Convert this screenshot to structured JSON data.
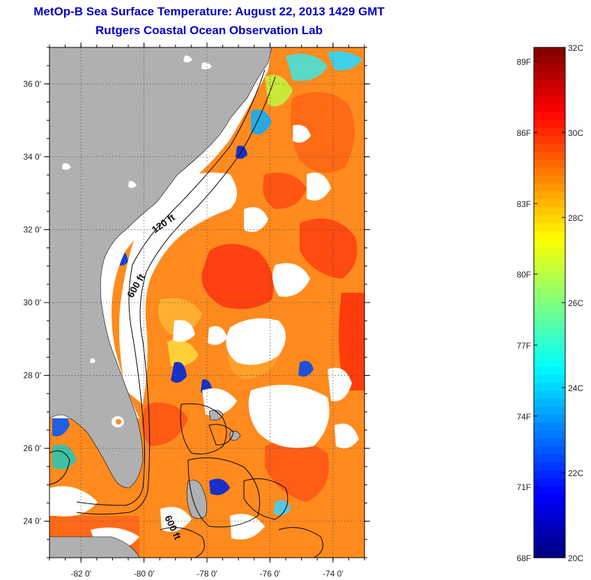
{
  "title": {
    "line1": "MetOp-B Sea Surface Temperature:  August 22, 2013 1429 GMT",
    "line2": "Rutgers Coastal Ocean Observation Lab"
  },
  "map": {
    "lon_range": [
      -83,
      -73
    ],
    "lat_range": [
      23,
      37
    ],
    "x_ticks": [
      {
        "value": -82,
        "label": "-82 0'"
      },
      {
        "value": -80,
        "label": "-80 0'"
      },
      {
        "value": -78,
        "label": "-78 0'"
      },
      {
        "value": -76,
        "label": "-76 0'"
      },
      {
        "value": -74,
        "label": "-74 0'"
      }
    ],
    "y_ticks": [
      {
        "value": 24,
        "label": "24 0'"
      },
      {
        "value": 26,
        "label": "26 0'"
      },
      {
        "value": 28,
        "label": "28 0'"
      },
      {
        "value": 30,
        "label": "30 0'"
      },
      {
        "value": 32,
        "label": "32 0'"
      },
      {
        "value": 34,
        "label": "34 0'"
      },
      {
        "value": 36,
        "label": "36 0'"
      }
    ],
    "isobath_labels": [
      "120 ft",
      "600 ft",
      "600 ft"
    ],
    "colors": {
      "land": "#b0b0b0",
      "cloud": "#ffffff",
      "contour": "#000000"
    }
  },
  "colorbar": {
    "min_c": 20,
    "max_c": 32,
    "fahrenheit_labels": [
      {
        "value_c": 31.67,
        "label": "89F"
      },
      {
        "value_c": 30.0,
        "label": "86F"
      },
      {
        "value_c": 28.33,
        "label": "83F"
      },
      {
        "value_c": 26.67,
        "label": "80F"
      },
      {
        "value_c": 25.0,
        "label": "77F"
      },
      {
        "value_c": 23.33,
        "label": "74F"
      },
      {
        "value_c": 21.67,
        "label": "71F"
      },
      {
        "value_c": 20.0,
        "label": "68F"
      }
    ],
    "celsius_labels": [
      {
        "value_c": 32,
        "label": "32C"
      },
      {
        "value_c": 30,
        "label": "30C"
      },
      {
        "value_c": 28,
        "label": "28C"
      },
      {
        "value_c": 26,
        "label": "26C"
      },
      {
        "value_c": 24,
        "label": "24C"
      },
      {
        "value_c": 22,
        "label": "22C"
      },
      {
        "value_c": 20,
        "label": "20C"
      }
    ]
  }
}
